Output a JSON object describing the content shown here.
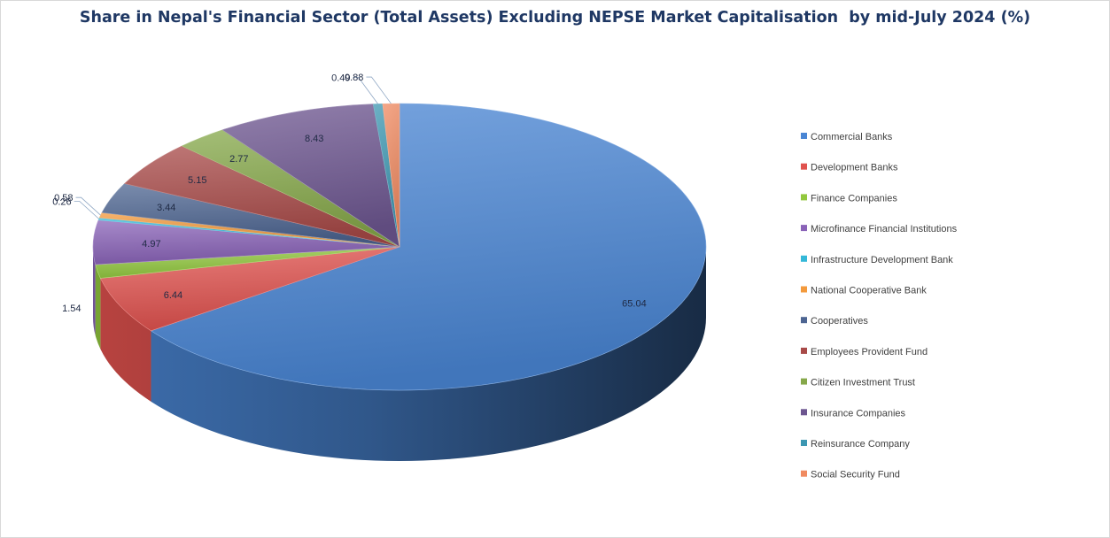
{
  "chart_data": {
    "type": "pie",
    "title": "Share in Nepal's Financial Sector (Total Assets) Excluding NEPSE Market Capitalisation  by mid-July 2024 (%)",
    "legend_position": "right",
    "slices": [
      {
        "label": "Commercial Banks",
        "value": 65.04,
        "value_text": "65.04",
        "color": "#4a86d4"
      },
      {
        "label": "Development Banks",
        "value": 6.44,
        "value_text": "6.44",
        "color": "#e0524e"
      },
      {
        "label": "Finance Companies",
        "value": 1.54,
        "value_text": "1.54",
        "color": "#92c83e"
      },
      {
        "label": "Microfinance Financial Institutions",
        "value": 4.97,
        "value_text": "4.97",
        "color": "#8a63b8"
      },
      {
        "label": "Infrastructure Development Bank",
        "value": 0.26,
        "value_text": "0.26",
        "color": "#34b8d8"
      },
      {
        "label": "National Cooperative Bank",
        "value": 0.58,
        "value_text": "0.58",
        "color": "#f39a3c"
      },
      {
        "label": "Cooperatives",
        "value": 3.44,
        "value_text": "3.44",
        "color": "#4d6592"
      },
      {
        "label": "Employees Provident Fund",
        "value": 5.15,
        "value_text": "5.15",
        "color": "#a84a48"
      },
      {
        "label": "Citizen Investment Trust",
        "value": 2.77,
        "value_text": "2.77",
        "color": "#86a84a"
      },
      {
        "label": "Insurance Companies",
        "value": 8.43,
        "value_text": "8.43",
        "color": "#6d5690"
      },
      {
        "label": "Reinsurance Company",
        "value": 0.49,
        "value_text": "0.49",
        "color": "#3c97b2"
      },
      {
        "label": "Social Security Fund",
        "value": 0.88,
        "value_text": "0.88",
        "color": "#f08a60"
      }
    ]
  }
}
